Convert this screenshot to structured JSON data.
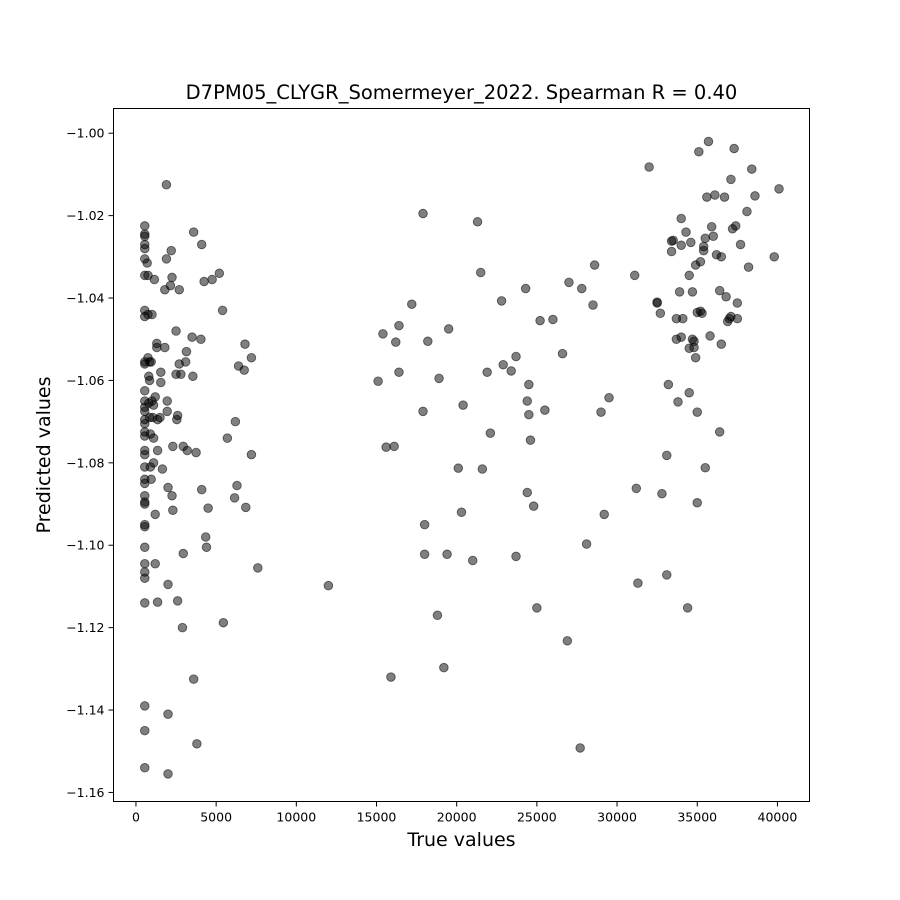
{
  "chart_data": {
    "type": "scatter",
    "title": "D7PM05_CLYGR_Somermeyer_2022. Spearman R = 0.40",
    "xlabel": "True values",
    "ylabel": "Predicted values",
    "xlim": [
      -1400,
      42000
    ],
    "ylim": [
      -1.1622,
      -0.994
    ],
    "xticks": [
      0,
      5000,
      10000,
      15000,
      20000,
      25000,
      30000,
      35000,
      40000
    ],
    "xtick_labels": [
      "0",
      "5000",
      "10000",
      "15000",
      "20000",
      "25000",
      "30000",
      "35000",
      "40000"
    ],
    "yticks": [
      -1.16,
      -1.14,
      -1.12,
      -1.1,
      -1.08,
      -1.06,
      -1.04,
      -1.02,
      -1.0
    ],
    "ytick_labels": [
      "−1.16",
      "−1.14",
      "−1.12",
      "−1.10",
      "−1.08",
      "−1.06",
      "−1.04",
      "−1.02",
      "−1.00"
    ],
    "grid": false,
    "point_color": "#000000",
    "point_alpha": 0.5,
    "points": [
      [
        550,
        -1.0225
      ],
      [
        550,
        -1.0245
      ],
      [
        550,
        -1.025
      ],
      [
        550,
        -1.027
      ],
      [
        550,
        -1.028
      ],
      [
        550,
        -1.0305
      ],
      [
        550,
        -1.0345
      ],
      [
        550,
        -1.043
      ],
      [
        550,
        -1.0445
      ],
      [
        550,
        -1.0555
      ],
      [
        550,
        -1.056
      ],
      [
        550,
        -1.0625
      ],
      [
        550,
        -1.065
      ],
      [
        550,
        -1.0665
      ],
      [
        550,
        -1.0675
      ],
      [
        550,
        -1.0695
      ],
      [
        550,
        -1.0705
      ],
      [
        550,
        -1.0725
      ],
      [
        550,
        -1.0735
      ],
      [
        550,
        -1.077
      ],
      [
        550,
        -1.078
      ],
      [
        550,
        -1.081
      ],
      [
        550,
        -1.084
      ],
      [
        550,
        -1.085
      ],
      [
        550,
        -1.088
      ],
      [
        550,
        -1.0895
      ],
      [
        550,
        -1.09
      ],
      [
        550,
        -1.095
      ],
      [
        550,
        -1.0955
      ],
      [
        550,
        -1.1005
      ],
      [
        550,
        -1.1045
      ],
      [
        550,
        -1.1065
      ],
      [
        550,
        -1.108
      ],
      [
        550,
        -1.114
      ],
      [
        550,
        -1.139
      ],
      [
        550,
        -1.145
      ],
      [
        550,
        -1.154
      ],
      [
        700,
        -1.0315
      ],
      [
        750,
        -1.0345
      ],
      [
        750,
        -1.044
      ],
      [
        750,
        -1.0545
      ],
      [
        800,
        -1.059
      ],
      [
        800,
        -1.0655
      ],
      [
        850,
        -1.0555
      ],
      [
        850,
        -1.06
      ],
      [
        850,
        -1.069
      ],
      [
        900,
        -1.073
      ],
      [
        900,
        -1.081
      ],
      [
        950,
        -1.084
      ],
      [
        950,
        -1.0555
      ],
      [
        1000,
        -1.044
      ],
      [
        1000,
        -1.065
      ],
      [
        1050,
        -1.069
      ],
      [
        1100,
        -1.066
      ],
      [
        1100,
        -1.074
      ],
      [
        1100,
        -1.08
      ],
      [
        1150,
        -1.0355
      ],
      [
        1200,
        -1.064
      ],
      [
        1200,
        -1.0925
      ],
      [
        1200,
        -1.1045
      ],
      [
        1300,
        -1.051
      ],
      [
        1300,
        -1.052
      ],
      [
        1350,
        -1.0695
      ],
      [
        1350,
        -1.077
      ],
      [
        1350,
        -1.1138
      ],
      [
        1500,
        -1.069
      ],
      [
        1550,
        -1.058
      ],
      [
        1550,
        -1.0605
      ],
      [
        1650,
        -1.0815
      ],
      [
        1800,
        -1.038
      ],
      [
        1800,
        -1.052
      ],
      [
        1900,
        -1.0125
      ],
      [
        1900,
        -1.0305
      ],
      [
        1950,
        -1.065
      ],
      [
        1950,
        -1.0675
      ],
      [
        2000,
        -1.086
      ],
      [
        2000,
        -1.1095
      ],
      [
        2000,
        -1.141
      ],
      [
        2000,
        -1.1555
      ],
      [
        2150,
        -1.037
      ],
      [
        2200,
        -1.0285
      ],
      [
        2250,
        -1.035
      ],
      [
        2250,
        -1.088
      ],
      [
        2300,
        -1.076
      ],
      [
        2300,
        -1.0915
      ],
      [
        2500,
        -1.048
      ],
      [
        2500,
        -1.0585
      ],
      [
        2550,
        -1.0695
      ],
      [
        2600,
        -1.0685
      ],
      [
        2600,
        -1.1135
      ],
      [
        2700,
        -1.056
      ],
      [
        2700,
        -1.038
      ],
      [
        2800,
        -1.0585
      ],
      [
        2900,
        -1.12
      ],
      [
        2950,
        -1.076
      ],
      [
        2950,
        -1.102
      ],
      [
        3100,
        -1.0555
      ],
      [
        3150,
        -1.053
      ],
      [
        3200,
        -1.077
      ],
      [
        3500,
        -1.0495
      ],
      [
        3550,
        -1.059
      ],
      [
        3600,
        -1.1325
      ],
      [
        3600,
        -1.024
      ],
      [
        3750,
        -1.0775
      ],
      [
        3800,
        -1.1482
      ],
      [
        4050,
        -1.05
      ],
      [
        4100,
        -1.027
      ],
      [
        4100,
        -1.0865
      ],
      [
        4250,
        -1.036
      ],
      [
        4350,
        -1.098
      ],
      [
        4400,
        -1.1005
      ],
      [
        4500,
        -1.091
      ],
      [
        4750,
        -1.0355
      ],
      [
        5200,
        -1.034
      ],
      [
        5400,
        -1.043
      ],
      [
        5450,
        -1.1188
      ],
      [
        5700,
        -1.074
      ],
      [
        6150,
        -1.0885
      ],
      [
        6200,
        -1.07
      ],
      [
        6300,
        -1.0855
      ],
      [
        6400,
        -1.0565
      ],
      [
        6750,
        -1.0575
      ],
      [
        6800,
        -1.0512
      ],
      [
        6850,
        -1.0908
      ],
      [
        7200,
        -1.0545
      ],
      [
        7200,
        -1.078
      ],
      [
        7600,
        -1.1055
      ],
      [
        12000,
        -1.1098
      ],
      [
        15100,
        -1.0602
      ],
      [
        15400,
        -1.0487
      ],
      [
        15600,
        -1.0762
      ],
      [
        15900,
        -1.132
      ],
      [
        16100,
        -1.076
      ],
      [
        16200,
        -1.0507
      ],
      [
        16400,
        -1.058
      ],
      [
        16400,
        -1.0467
      ],
      [
        17200,
        -1.0415
      ],
      [
        17900,
        -1.0195
      ],
      [
        17900,
        -1.0675
      ],
      [
        18000,
        -1.095
      ],
      [
        18000,
        -1.1022
      ],
      [
        18200,
        -1.0505
      ],
      [
        18800,
        -1.117
      ],
      [
        18900,
        -1.0595
      ],
      [
        19200,
        -1.1297
      ],
      [
        19400,
        -1.1022
      ],
      [
        19500,
        -1.0475
      ],
      [
        20100,
        -1.0813
      ],
      [
        20300,
        -1.092
      ],
      [
        20400,
        -1.066
      ],
      [
        21000,
        -1.1037
      ],
      [
        21300,
        -1.0215
      ],
      [
        21500,
        -1.0338
      ],
      [
        21600,
        -1.0815
      ],
      [
        21900,
        -1.058
      ],
      [
        22100,
        -1.0728
      ],
      [
        22800,
        -1.0407
      ],
      [
        22900,
        -1.0562
      ],
      [
        23400,
        -1.0577
      ],
      [
        23700,
        -1.0542
      ],
      [
        23700,
        -1.1027
      ],
      [
        24300,
        -1.0377
      ],
      [
        24400,
        -1.065
      ],
      [
        24400,
        -1.0872
      ],
      [
        24500,
        -1.061
      ],
      [
        24500,
        -1.0683
      ],
      [
        24600,
        -1.0745
      ],
      [
        24800,
        -1.0905
      ],
      [
        25000,
        -1.1152
      ],
      [
        25200,
        -1.0455
      ],
      [
        25500,
        -1.0672
      ],
      [
        26000,
        -1.0452
      ],
      [
        26600,
        -1.0535
      ],
      [
        26900,
        -1.1232
      ],
      [
        27000,
        -1.0362
      ],
      [
        27700,
        -1.1492
      ],
      [
        27800,
        -1.0377
      ],
      [
        28100,
        -1.0997
      ],
      [
        28500,
        -1.0417
      ],
      [
        28600,
        -1.032
      ],
      [
        29000,
        -1.0677
      ],
      [
        29200,
        -1.0925
      ],
      [
        29500,
        -1.0642
      ],
      [
        31100,
        -1.0345
      ],
      [
        31200,
        -1.0862
      ],
      [
        31300,
        -1.1092
      ],
      [
        32000,
        -1.0082
      ],
      [
        32500,
        -1.0412
      ],
      [
        32500,
        -1.041
      ],
      [
        32700,
        -1.0437
      ],
      [
        32800,
        -1.0875
      ],
      [
        33100,
        -1.0782
      ],
      [
        33100,
        -1.1072
      ],
      [
        33200,
        -1.061
      ],
      [
        33400,
        -1.0262
      ],
      [
        33400,
        -1.0287
      ],
      [
        33500,
        -1.026
      ],
      [
        33700,
        -1.045
      ],
      [
        33700,
        -1.05
      ],
      [
        33800,
        -1.0652
      ],
      [
        33900,
        -1.0385
      ],
      [
        34000,
        -1.0272
      ],
      [
        34000,
        -1.0495
      ],
      [
        34000,
        -1.0207
      ],
      [
        34100,
        -1.045
      ],
      [
        34300,
        -1.024
      ],
      [
        34400,
        -1.1152
      ],
      [
        34500,
        -1.0345
      ],
      [
        34500,
        -1.0522
      ],
      [
        34500,
        -1.063
      ],
      [
        34600,
        -1.0265
      ],
      [
        34700,
        -1.0385
      ],
      [
        34700,
        -1.05
      ],
      [
        34800,
        -1.0505
      ],
      [
        34800,
        -1.052
      ],
      [
        34900,
        -1.0545
      ],
      [
        34900,
        -1.032
      ],
      [
        35000,
        -1.0677
      ],
      [
        35000,
        -1.0897
      ],
      [
        35000,
        -1.0435
      ],
      [
        35100,
        -1.0045
      ],
      [
        35200,
        -1.0432
      ],
      [
        35200,
        -1.0312
      ],
      [
        35300,
        -1.0437
      ],
      [
        35400,
        -1.0275
      ],
      [
        35400,
        -1.0285
      ],
      [
        35500,
        -1.0255
      ],
      [
        35500,
        -1.0812
      ],
      [
        35600,
        -1.0155
      ],
      [
        35700,
        -1.002
      ],
      [
        35800,
        -1.0492
      ],
      [
        35900,
        -1.0227
      ],
      [
        36000,
        -1.025
      ],
      [
        36100,
        -1.015
      ],
      [
        36200,
        -1.0295
      ],
      [
        36400,
        -1.0725
      ],
      [
        36400,
        -1.0382
      ],
      [
        36500,
        -1.03
      ],
      [
        36500,
        -1.0512
      ],
      [
        36700,
        -1.0155
      ],
      [
        36800,
        -1.0397
      ],
      [
        36900,
        -1.0457
      ],
      [
        37000,
        -1.045
      ],
      [
        37100,
        -1.0445
      ],
      [
        37100,
        -1.0112
      ],
      [
        37200,
        -1.0232
      ],
      [
        37300,
        -1.0037
      ],
      [
        37400,
        -1.0225
      ],
      [
        37500,
        -1.0412
      ],
      [
        37500,
        -1.045
      ],
      [
        37700,
        -1.027
      ],
      [
        38100,
        -1.019
      ],
      [
        38200,
        -1.0325
      ],
      [
        38400,
        -1.0087
      ],
      [
        38600,
        -1.0152
      ],
      [
        39800,
        -1.03
      ],
      [
        40100,
        -1.0135
      ]
    ]
  }
}
